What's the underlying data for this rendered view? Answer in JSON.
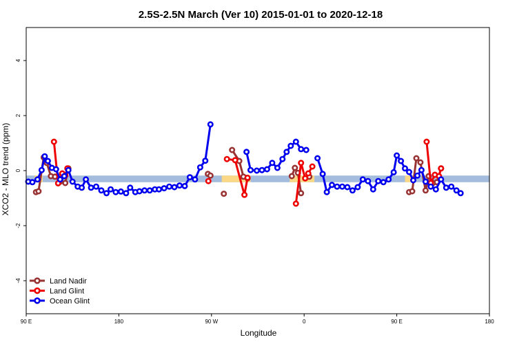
{
  "chart_data": {
    "type": "line",
    "title": "2.5S-2.5N March (Ver 10)   2015-01-01 to 2020-12-18",
    "xlabel": "Longitude",
    "ylabel": "XCO2 - MLO trend (ppm)",
    "xlim": [
      90,
      540
    ],
    "ylim": [
      -5.2,
      5.2
    ],
    "x_ticks": [
      {
        "value": 90,
        "label": "90 E"
      },
      {
        "value": 180,
        "label": "180"
      },
      {
        "value": 270,
        "label": "90 W"
      },
      {
        "value": 360,
        "label": "0"
      },
      {
        "value": 450,
        "label": "90 E"
      },
      {
        "value": 540,
        "label": "180"
      }
    ],
    "y_ticks": [
      {
        "value": -4,
        "label": "-4"
      },
      {
        "value": -2,
        "label": "-2"
      },
      {
        "value": 0,
        "label": "0"
      },
      {
        "value": 2,
        "label": "2"
      },
      {
        "value": 4,
        "label": "4"
      }
    ],
    "grid": false,
    "legend_position": "bottom-left",
    "surface_band": {
      "y_range": [
        -0.42,
        -0.18
      ],
      "ocean_color": "#a4bcde",
      "land_color": "#fbd886",
      "land_segments": [
        [
          98,
          106
        ],
        [
          280,
          308
        ],
        [
          346,
          370
        ],
        [
          458,
          466
        ]
      ]
    },
    "series": [
      {
        "name": "Land Nadir",
        "color": "#993333",
        "segments": [
          [
            [
              99.5,
              -0.78
            ],
            [
              102,
              -0.75
            ],
            [
              107,
              0.48
            ],
            [
              110,
              0.28
            ],
            [
              114,
              -0.2
            ],
            [
              118,
              -0.22
            ],
            [
              123,
              -0.4
            ],
            [
              128,
              -0.45
            ],
            [
              131,
              0.08
            ]
          ],
          [
            [
              266.5,
              -0.12
            ],
            [
              269,
              -0.18
            ]
          ],
          [
            [
              282,
              -0.84
            ]
          ],
          [
            [
              290,
              0.75
            ],
            [
              297,
              0.35
            ],
            [
              301,
              -0.22
            ],
            [
              305,
              -0.28
            ]
          ],
          [
            [
              348,
              -0.2
            ],
            [
              351,
              0.1
            ],
            [
              354,
              -0.08
            ],
            [
              357,
              -0.82
            ]
          ],
          [
            [
              365,
              -0.22
            ]
          ],
          [
            [
              462,
              -0.78
            ],
            [
              465,
              -0.75
            ],
            [
              469,
              0.45
            ],
            [
              473,
              0.3
            ],
            [
              478,
              -0.72
            ],
            [
              481,
              -0.2
            ],
            [
              485,
              -0.45
            ],
            [
              489,
              -0.42
            ],
            [
              493,
              0.08
            ]
          ]
        ]
      },
      {
        "name": "Land Glint",
        "color": "#ee0000",
        "segments": [
          [
            [
              117,
              1.05
            ],
            [
              121,
              -0.46
            ],
            [
              125,
              -0.1
            ],
            [
              128,
              -0.18
            ],
            [
              130,
              0.08
            ]
          ],
          [
            [
              267,
              -0.38
            ]
          ],
          [
            [
              285,
              0.42
            ],
            [
              293,
              0.38
            ],
            [
              302,
              -0.88
            ],
            [
              305,
              -0.26
            ]
          ],
          [
            [
              352,
              -1.2
            ],
            [
              357,
              0.28
            ],
            [
              361,
              -0.28
            ],
            [
              364,
              -0.1
            ],
            [
              368,
              0.15
            ]
          ],
          [
            [
              479,
              1.05
            ],
            [
              483,
              -0.45
            ],
            [
              487,
              -0.15
            ],
            [
              491,
              -0.2
            ],
            [
              493,
              0.08
            ]
          ]
        ]
      },
      {
        "name": "Ocean Glint",
        "color": "#0000ee",
        "segments": [
          [
            [
              92,
              -0.4
            ],
            [
              96,
              -0.42
            ],
            [
              101,
              -0.32
            ],
            [
              105,
              0.02
            ],
            [
              108,
              0.52
            ],
            [
              111,
              0.35
            ],
            [
              115,
              0.1
            ],
            [
              119,
              0.05
            ],
            [
              123,
              -0.32
            ],
            [
              127,
              -0.2
            ],
            [
              131,
              0.02
            ],
            [
              135,
              -0.4
            ],
            [
              140,
              -0.58
            ],
            [
              144,
              -0.62
            ],
            [
              148,
              -0.32
            ],
            [
              153,
              -0.62
            ],
            [
              158,
              -0.58
            ],
            [
              163,
              -0.72
            ],
            [
              168,
              -0.82
            ],
            [
              172,
              -0.68
            ],
            [
              177,
              -0.78
            ],
            [
              182,
              -0.76
            ],
            [
              187,
              -0.82
            ],
            [
              191,
              -0.62
            ],
            [
              196,
              -0.78
            ],
            [
              200,
              -0.75
            ],
            [
              205,
              -0.72
            ],
            [
              210,
              -0.72
            ],
            [
              215,
              -0.68
            ],
            [
              219,
              -0.68
            ],
            [
              224,
              -0.64
            ],
            [
              229,
              -0.58
            ],
            [
              234,
              -0.6
            ],
            [
              239,
              -0.54
            ],
            [
              244,
              -0.56
            ],
            [
              249,
              -0.24
            ],
            [
              254,
              -0.32
            ],
            [
              259,
              0.12
            ],
            [
              264,
              0.36
            ],
            [
              269,
              1.68
            ]
          ],
          [
            [
              304,
              0.68
            ],
            [
              308,
              0.02
            ],
            [
              314,
              0.0
            ],
            [
              319,
              0.02
            ],
            [
              324,
              0.05
            ],
            [
              329,
              0.28
            ],
            [
              334,
              0.1
            ],
            [
              339,
              0.42
            ],
            [
              343,
              0.68
            ],
            [
              347,
              0.9
            ],
            [
              352,
              1.05
            ],
            [
              357,
              0.78
            ],
            [
              362,
              0.75
            ]
          ],
          [
            [
              373,
              0.45
            ],
            [
              378,
              -0.12
            ],
            [
              382,
              -0.78
            ],
            [
              387,
              -0.52
            ],
            [
              392,
              -0.58
            ],
            [
              397,
              -0.58
            ],
            [
              402,
              -0.6
            ],
            [
              407,
              -0.72
            ],
            [
              412,
              -0.6
            ],
            [
              417,
              -0.32
            ],
            [
              422,
              -0.38
            ],
            [
              427,
              -0.68
            ],
            [
              432,
              -0.38
            ],
            [
              437,
              -0.42
            ],
            [
              442,
              -0.32
            ],
            [
              447,
              -0.06
            ],
            [
              450,
              0.55
            ],
            [
              454,
              0.35
            ],
            [
              458,
              0.08
            ],
            [
              462,
              -0.05
            ],
            [
              466,
              -0.35
            ],
            [
              470,
              -0.18
            ],
            [
              474,
              0.02
            ],
            [
              478,
              -0.4
            ],
            [
              483,
              -0.58
            ],
            [
              488,
              -0.68
            ],
            [
              493,
              -0.32
            ],
            [
              498,
              -0.62
            ],
            [
              503,
              -0.58
            ],
            [
              508,
              -0.72
            ],
            [
              512,
              -0.82
            ]
          ]
        ]
      }
    ]
  }
}
